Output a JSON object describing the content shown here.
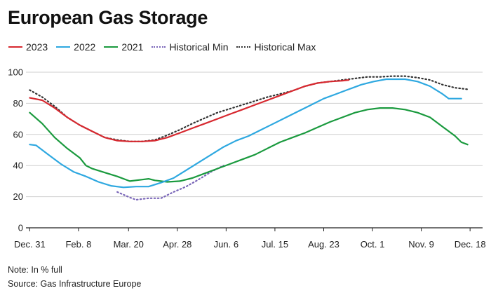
{
  "title": "European Gas Storage",
  "note": "Note: In % full",
  "source": "Source: Gas Infrastructure Europe",
  "chart_data": {
    "type": "line",
    "title": "European Gas Storage",
    "xlabel": "",
    "ylabel": "",
    "ylim": [
      0,
      100
    ],
    "yticks": [
      0,
      20,
      40,
      60,
      80,
      100
    ],
    "xlim": [
      -3,
      362
    ],
    "xticks": [
      {
        "label": "Dec. 31",
        "day": 0
      },
      {
        "label": "Feb. 8",
        "day": 39
      },
      {
        "label": "Mar. 20",
        "day": 79
      },
      {
        "label": "Apr. 28",
        "day": 118
      },
      {
        "label": "Jun. 6",
        "day": 157
      },
      {
        "label": "Jul. 15",
        "day": 196
      },
      {
        "label": "Aug. 23",
        "day": 235
      },
      {
        "label": "Oct. 1",
        "day": 274
      },
      {
        "label": "Nov. 9",
        "day": 313
      },
      {
        "label": "Dec. 18",
        "day": 352
      }
    ],
    "grid": "horizontal",
    "legend_position": "top-left",
    "series": [
      {
        "name": "2023",
        "color": "#d7282f",
        "style": "solid",
        "points": [
          [
            0,
            83.5
          ],
          [
            10,
            82
          ],
          [
            20,
            77
          ],
          [
            30,
            71
          ],
          [
            40,
            66
          ],
          [
            50,
            62
          ],
          [
            60,
            58
          ],
          [
            70,
            56
          ],
          [
            80,
            55.5
          ],
          [
            90,
            55.5
          ],
          [
            100,
            56
          ],
          [
            110,
            58
          ],
          [
            120,
            61
          ],
          [
            130,
            64
          ],
          [
            140,
            67
          ],
          [
            150,
            70
          ],
          [
            160,
            73
          ],
          [
            170,
            76
          ],
          [
            180,
            79
          ],
          [
            190,
            82
          ],
          [
            200,
            85
          ],
          [
            210,
            88
          ],
          [
            220,
            91
          ],
          [
            230,
            93
          ],
          [
            240,
            94
          ],
          [
            250,
            94.5
          ],
          [
            255,
            95
          ]
        ]
      },
      {
        "name": "2022",
        "color": "#2ea8e0",
        "style": "solid",
        "points": [
          [
            0,
            53.5
          ],
          [
            5,
            53
          ],
          [
            15,
            47
          ],
          [
            25,
            41
          ],
          [
            35,
            36
          ],
          [
            45,
            33
          ],
          [
            55,
            29.5
          ],
          [
            65,
            27
          ],
          [
            75,
            26
          ],
          [
            85,
            26.5
          ],
          [
            95,
            26.5
          ],
          [
            105,
            29
          ],
          [
            115,
            32
          ],
          [
            125,
            37
          ],
          [
            135,
            42
          ],
          [
            145,
            47
          ],
          [
            155,
            52
          ],
          [
            165,
            56
          ],
          [
            175,
            59
          ],
          [
            185,
            63
          ],
          [
            195,
            67
          ],
          [
            205,
            71
          ],
          [
            215,
            75
          ],
          [
            225,
            79
          ],
          [
            235,
            83
          ],
          [
            245,
            86
          ],
          [
            255,
            89
          ],
          [
            265,
            92
          ],
          [
            275,
            94
          ],
          [
            285,
            95.5
          ],
          [
            295,
            95.5
          ],
          [
            300,
            95.5
          ],
          [
            310,
            94
          ],
          [
            320,
            91
          ],
          [
            330,
            86
          ],
          [
            335,
            83
          ],
          [
            340,
            83
          ],
          [
            345,
            83
          ]
        ]
      },
      {
        "name": "2021",
        "color": "#1a9a3e",
        "style": "solid",
        "points": [
          [
            0,
            74
          ],
          [
            10,
            67
          ],
          [
            20,
            58
          ],
          [
            30,
            51
          ],
          [
            40,
            45
          ],
          [
            45,
            40
          ],
          [
            50,
            38
          ],
          [
            60,
            35.5
          ],
          [
            70,
            33
          ],
          [
            80,
            30
          ],
          [
            90,
            31
          ],
          [
            95,
            31.5
          ],
          [
            100,
            30.5
          ],
          [
            110,
            29.5
          ],
          [
            120,
            30
          ],
          [
            130,
            32
          ],
          [
            140,
            35
          ],
          [
            150,
            38
          ],
          [
            160,
            41
          ],
          [
            170,
            44
          ],
          [
            180,
            47
          ],
          [
            190,
            51
          ],
          [
            200,
            55
          ],
          [
            210,
            58
          ],
          [
            220,
            61
          ],
          [
            230,
            64.5
          ],
          [
            240,
            68
          ],
          [
            250,
            71
          ],
          [
            260,
            74
          ],
          [
            270,
            76
          ],
          [
            280,
            77
          ],
          [
            290,
            77
          ],
          [
            300,
            76
          ],
          [
            310,
            74
          ],
          [
            320,
            71
          ],
          [
            330,
            65
          ],
          [
            340,
            59
          ],
          [
            345,
            55
          ],
          [
            350,
            53.5
          ]
        ]
      },
      {
        "name": "Historical Min",
        "color": "#7a66b8",
        "style": "dot",
        "points": [
          [
            70,
            23
          ],
          [
            80,
            19.5
          ],
          [
            85,
            18
          ],
          [
            95,
            19
          ],
          [
            105,
            19
          ],
          [
            115,
            23
          ],
          [
            125,
            26.5
          ],
          [
            135,
            31
          ],
          [
            145,
            36
          ],
          [
            155,
            40
          ]
        ]
      },
      {
        "name": "Historical Max",
        "color": "#333333",
        "style": "dot",
        "points": [
          [
            0,
            88.5
          ],
          [
            10,
            84
          ],
          [
            20,
            78
          ],
          [
            30,
            71
          ],
          [
            40,
            66
          ],
          [
            50,
            62
          ],
          [
            60,
            58
          ],
          [
            70,
            56.5
          ],
          [
            80,
            55.5
          ],
          [
            90,
            55.5
          ],
          [
            100,
            56.5
          ],
          [
            110,
            59.5
          ],
          [
            120,
            63
          ],
          [
            130,
            67
          ],
          [
            140,
            70.5
          ],
          [
            150,
            74
          ],
          [
            160,
            76.5
          ],
          [
            170,
            79
          ],
          [
            180,
            81.5
          ],
          [
            190,
            84
          ],
          [
            200,
            86
          ],
          [
            210,
            88
          ],
          [
            220,
            91
          ],
          [
            230,
            93
          ],
          [
            240,
            94
          ],
          [
            250,
            95
          ],
          [
            260,
            96
          ],
          [
            270,
            97
          ],
          [
            280,
            97
          ],
          [
            290,
            97.5
          ],
          [
            300,
            97.5
          ],
          [
            310,
            96.5
          ],
          [
            320,
            95
          ],
          [
            330,
            92
          ],
          [
            340,
            90
          ],
          [
            350,
            89
          ]
        ]
      }
    ]
  }
}
